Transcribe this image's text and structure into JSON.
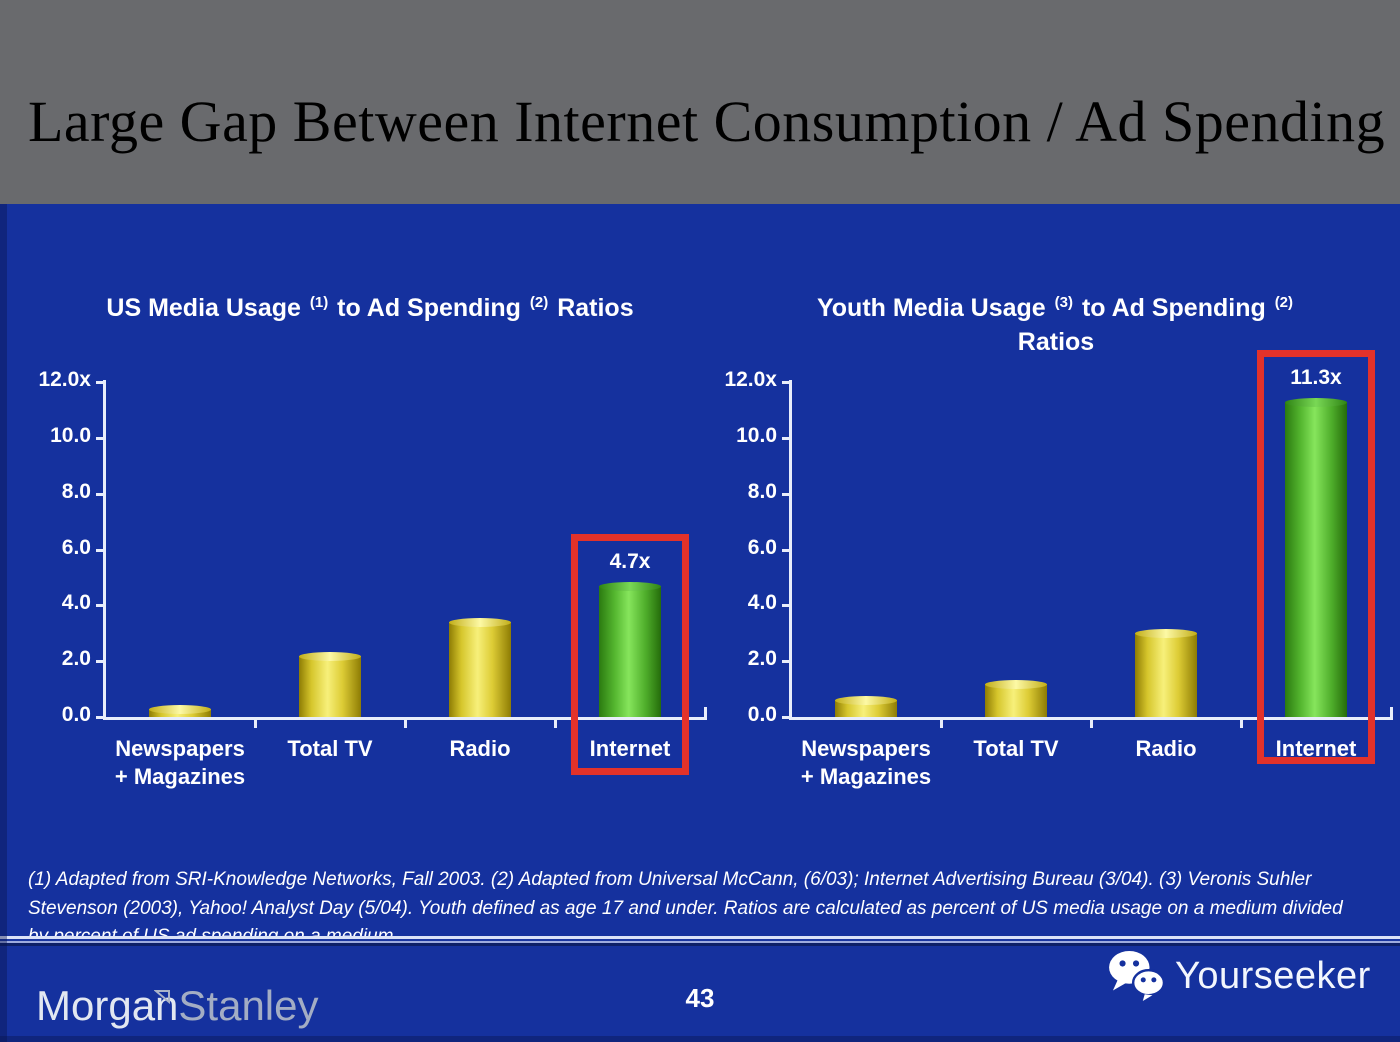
{
  "slide": {
    "title": "Large Gap Between Internet Consumption / Ad Spending",
    "page_number": "43",
    "footnote_lines": [
      "(1) Adapted from SRI-Knowledge Networks, Fall 2003.  (2) Adapted from Universal McCann, (6/03); Internet Advertising Bureau (3/04). (3) Veronis Suhler",
      "Stevenson (2003), Yahoo! Analyst Day (5/04).  Youth defined as age 17 and under.  Ratios are calculated as percent of US media usage on a medium divided",
      "by percent of US ad spending on a medium."
    ]
  },
  "footer": {
    "brand_morgan": "Morgan",
    "brand_stanley": "Stanley",
    "watermark": "Yourseeker",
    "wechat_icon": "wechat-logo"
  },
  "colors": {
    "background_blue": "#15319E",
    "header_gray": "#696A6D",
    "bar_yellow": "#E8D83A",
    "bar_green": "#5BC335",
    "highlight_red": "#E2322A",
    "axis_white": "#E8EDFB",
    "text_white": "#FFFFFF"
  },
  "chart_data": [
    {
      "type": "bar",
      "title": "US Media Usage (1) to Ad Spending (2) Ratios",
      "title_parts": {
        "t1": "US Media Usage",
        "sup1": "(1)",
        "t2": "to Ad Spending",
        "sup2": "(2)",
        "t3": "Ratios"
      },
      "categories": [
        "Newspapers + Magazines",
        "Total TV",
        "Radio",
        "Internet"
      ],
      "category_lines": [
        [
          "Newspapers",
          "+ Magazines"
        ],
        [
          "Total TV"
        ],
        [
          "Radio"
        ],
        [
          "Internet"
        ]
      ],
      "values": [
        0.3,
        2.2,
        3.4,
        4.7
      ],
      "bar_color_keys": [
        "yellow",
        "yellow",
        "yellow",
        "green"
      ],
      "highlight_index": 3,
      "highlight_value_label": "4.7x",
      "ylim": [
        0,
        12
      ],
      "ytick_values": [
        0,
        2,
        4,
        6,
        8,
        10,
        12
      ],
      "ytick_labels": [
        "0.0",
        "2.0",
        "4.0",
        "6.0",
        "8.0",
        "10.0",
        "12.0x"
      ],
      "grid": false,
      "legend": null
    },
    {
      "type": "bar",
      "title": "Youth Media Usage (3) to Ad Spending (2) Ratios",
      "title_parts": {
        "t1": "Youth Media Usage",
        "sup1": "(3)",
        "t2": "to Ad Spending",
        "sup2": "(2)",
        "t3": "Ratios"
      },
      "categories": [
        "Newspapers + Magazines",
        "Total TV",
        "Radio",
        "Internet"
      ],
      "category_lines": [
        [
          "Newspapers",
          "+ Magazines"
        ],
        [
          "Total TV"
        ],
        [
          "Radio"
        ],
        [
          "Internet"
        ]
      ],
      "values": [
        0.6,
        1.2,
        3.0,
        11.3
      ],
      "bar_color_keys": [
        "yellow",
        "yellow",
        "yellow",
        "green"
      ],
      "highlight_index": 3,
      "highlight_value_label": "11.3x",
      "ylim": [
        0,
        12
      ],
      "ytick_values": [
        0,
        2,
        4,
        6,
        8,
        10,
        12
      ],
      "ytick_labels": [
        "0.0",
        "2.0",
        "4.0",
        "6.0",
        "8.0",
        "10.0",
        "12.0x"
      ],
      "grid": false,
      "legend": null
    }
  ]
}
